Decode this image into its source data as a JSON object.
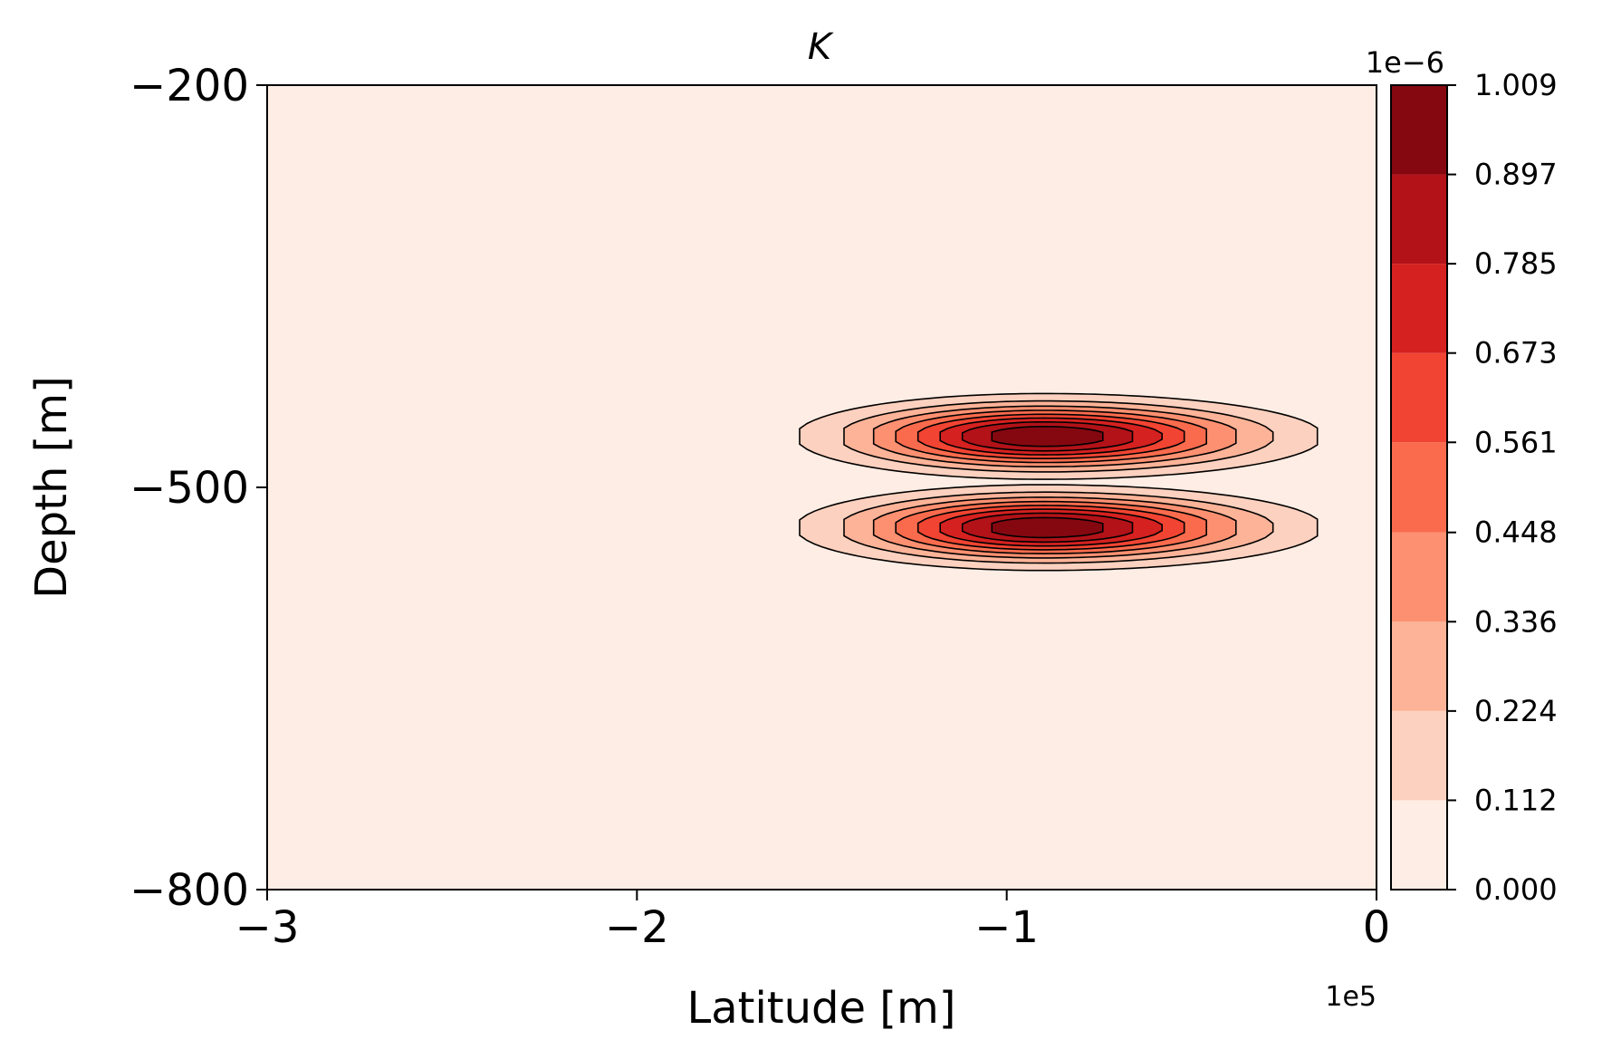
{
  "chart_data": {
    "type": "heatmap",
    "subtype": "filled-contour",
    "title": "K",
    "xlabel": "Latitude [m]",
    "ylabel": "Depth [m]",
    "x_ticks": [
      "−3",
      "−2",
      "−1",
      "0"
    ],
    "x_tick_values": [
      -3,
      -2,
      -1,
      0
    ],
    "x_multiplier": "1e5",
    "xlim": [
      -3,
      0
    ],
    "y_ticks": [
      "−200",
      "−500",
      "−800"
    ],
    "y_tick_values": [
      -200,
      -500,
      -800
    ],
    "ylim": [
      -800,
      -200
    ],
    "grid": false,
    "field": {
      "lobes": [
        {
          "center_x": -0.9,
          "center_depth": -462,
          "peak": 1.009
        },
        {
          "center_x": -0.9,
          "center_depth": -530,
          "peak": 1.009
        }
      ],
      "x_extent": [
        -1.8,
        0
      ],
      "depth_half_width": 32
    },
    "colorbar": {
      "multiplier": "1e−6",
      "ticks": [
        "0.000",
        "0.112",
        "0.224",
        "0.336",
        "0.448",
        "0.561",
        "0.673",
        "0.785",
        "0.897",
        "1.009"
      ],
      "levels": [
        0.0,
        0.112,
        0.224,
        0.336,
        0.448,
        0.561,
        0.673,
        0.785,
        0.897,
        1.009
      ],
      "colors": [
        "#feede4",
        "#fdd1bf",
        "#fcb398",
        "#fc9071",
        "#fa6b4d",
        "#f14432",
        "#d52120",
        "#b21218",
        "#850811"
      ]
    }
  }
}
